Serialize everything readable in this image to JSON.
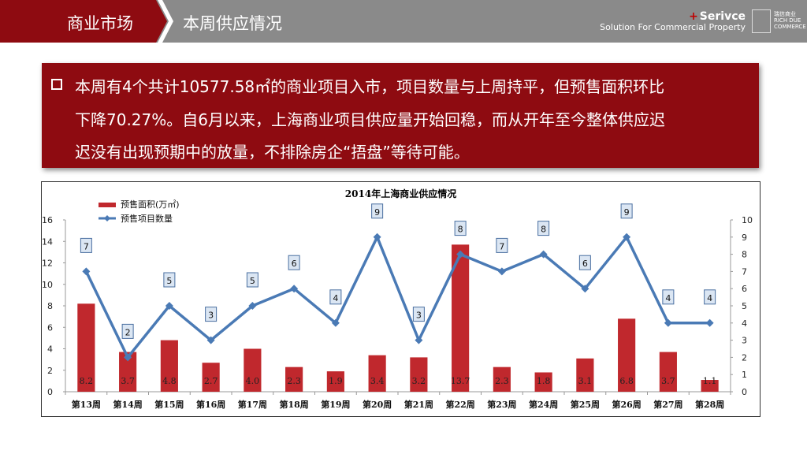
{
  "header": {
    "section": "商业市场",
    "title": "本周供应情况",
    "brand_main": "Serivce",
    "brand_plus": "+",
    "brand_sub": "Solution For Commercial Property",
    "logo_text": "瑞信商业 RICH DUE COMMERCE"
  },
  "summary": {
    "lines": [
      "本周有4个共计10577.58㎡的商业项目入市，项目数量与上周持平，但预售面积环比",
      "下降70.27%。自6月以来，上海商业项目供应量开始回稳，而从开年至今整体供应迟",
      "迟没有出现预期中的放量，不排除房企“捂盘”等待可能。"
    ]
  },
  "colors": {
    "header_bg": "#8a8a8a",
    "accent_red": "#8e0b11",
    "bar_red": "#c0282d",
    "line_blue": "#4a7ab5",
    "label_box_bg": "#dbe6f3"
  },
  "chart_data": {
    "type": "bar",
    "title": "2014年上海商业供应情况",
    "categories": [
      "第13周",
      "第14周",
      "第15周",
      "第16周",
      "第17周",
      "第18周",
      "第19周",
      "第20周",
      "第21周",
      "第22周",
      "第23周",
      "第24周",
      "第25周",
      "第26周",
      "第27周",
      "第28周"
    ],
    "series": [
      {
        "name": "预售面积(万㎡)",
        "type": "bar",
        "axis": "left",
        "values": [
          8.2,
          3.7,
          4.8,
          2.7,
          4.0,
          2.3,
          1.9,
          3.4,
          3.2,
          13.7,
          2.3,
          1.8,
          3.1,
          6.8,
          3.7,
          1.1
        ],
        "labels": [
          "8.2",
          "3.7",
          "4.8",
          "2.7",
          "4.0",
          "2.3",
          "1.9",
          "3.4",
          "3.2",
          "13.7",
          "2.3",
          "1.8",
          "3.1",
          "6.8",
          "3.7",
          "1.1"
        ]
      },
      {
        "name": "预售项目数量",
        "type": "line",
        "axis": "right",
        "values": [
          7,
          2,
          5,
          3,
          5,
          6,
          4,
          9,
          3,
          8,
          7,
          8,
          6,
          9,
          4,
          4
        ]
      }
    ],
    "ylim_left": [
      0,
      16
    ],
    "yticks_left": [
      "0",
      "2",
      "4",
      "6",
      "8",
      "10",
      "12",
      "14",
      "16"
    ],
    "ylim_right": [
      0,
      10
    ],
    "yticks_right": [
      "0",
      "1",
      "2",
      "3",
      "4",
      "5",
      "6",
      "7",
      "8",
      "9",
      "10"
    ],
    "legend_position": "top-left",
    "grid": false
  }
}
